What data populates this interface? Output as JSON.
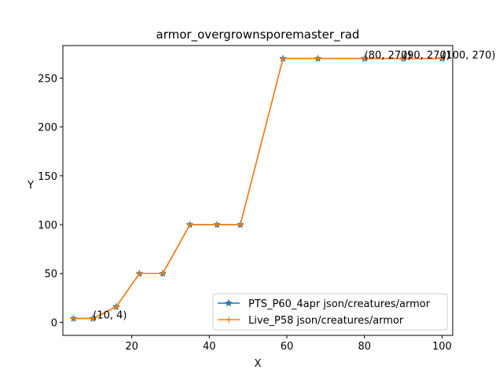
{
  "chart_data": {
    "type": "line",
    "title": "armor_overgrownsporemaster_rad",
    "xlabel": "X",
    "ylabel": "Y",
    "xlim": [
      2.25,
      102.75
    ],
    "ylim": [
      -13.3,
      283.3
    ],
    "xticks": [
      20,
      40,
      60,
      80,
      100
    ],
    "yticks": [
      0,
      50,
      100,
      150,
      200,
      250
    ],
    "grid": false,
    "legend_position": "lower right",
    "series": [
      {
        "name": "PTS_P60_4apr json/creatures/armor",
        "color": "#1f77b4",
        "marker": "star",
        "x": [
          5,
          10,
          16,
          22,
          28,
          35,
          42,
          48,
          59,
          68,
          80,
          90,
          100
        ],
        "y": [
          4,
          4,
          16,
          50,
          50,
          100,
          100,
          100,
          270,
          270,
          270,
          270,
          270
        ]
      },
      {
        "name": "Live_P58 json/creatures/armor",
        "color": "#ff7f0e",
        "marker": "plus",
        "x": [
          5,
          10,
          16,
          22,
          28,
          35,
          42,
          48,
          59,
          68,
          80,
          90,
          100
        ],
        "y": [
          4,
          4,
          16,
          50,
          50,
          100,
          100,
          100,
          270,
          270,
          270,
          270,
          270
        ]
      }
    ],
    "annotations": [
      {
        "x": 10,
        "y": 4,
        "text": "(10, 4)"
      },
      {
        "x": 80,
        "y": 270,
        "text": "(80, 270)"
      },
      {
        "x": 90,
        "y": 270,
        "text": "(90, 270)"
      },
      {
        "x": 100,
        "y": 270,
        "text": "(100, 270)"
      }
    ]
  }
}
